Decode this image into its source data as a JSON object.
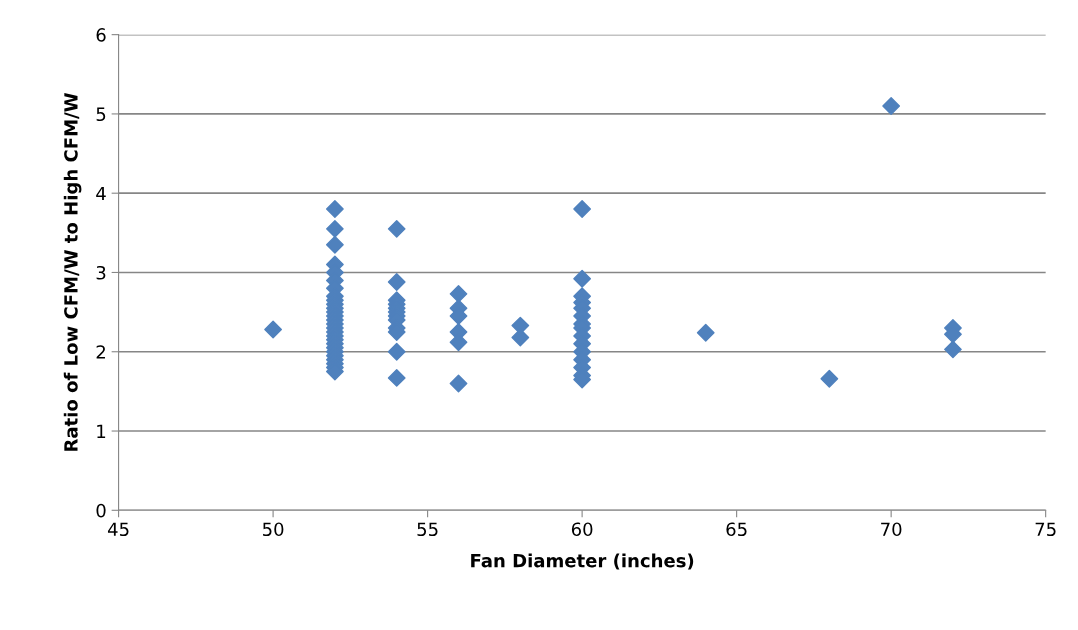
{
  "chart_data": {
    "type": "scatter",
    "xlabel": "Fan Diameter (inches)",
    "ylabel": "Ratio of Low CFM/W to High CFM/W",
    "x": [
      50,
      52,
      52,
      52,
      52,
      52,
      52,
      52,
      52,
      52,
      52,
      52,
      52,
      52,
      52,
      52,
      52,
      52,
      52,
      52,
      52,
      52,
      52,
      52,
      52,
      52,
      52,
      52,
      54,
      54,
      54,
      54,
      54,
      54,
      54,
      54,
      54,
      54,
      54,
      54,
      56,
      56,
      56,
      56,
      56,
      56,
      58,
      58,
      60,
      60,
      60,
      60,
      60,
      60,
      60,
      60,
      60,
      60,
      60,
      60,
      60,
      60,
      60,
      64,
      68,
      70,
      72,
      72,
      72
    ],
    "series": [
      {
        "color": "#4f81bd",
        "values": [
          2.28,
          3.8,
          3.55,
          3.35,
          3.1,
          3.0,
          2.9,
          2.8,
          2.7,
          2.65,
          2.6,
          2.55,
          2.5,
          2.45,
          2.4,
          2.35,
          2.3,
          2.25,
          2.2,
          2.15,
          2.1,
          2.05,
          2.0,
          1.95,
          1.9,
          1.85,
          1.8,
          1.75,
          3.55,
          2.88,
          2.65,
          2.6,
          2.55,
          2.5,
          2.45,
          2.4,
          2.3,
          2.25,
          2.0,
          1.67,
          2.73,
          2.55,
          2.45,
          2.25,
          2.12,
          1.6,
          2.33,
          2.18,
          3.8,
          2.92,
          2.7,
          2.62,
          2.55,
          2.45,
          2.35,
          2.3,
          2.2,
          2.1,
          2.0,
          1.9,
          1.8,
          1.7,
          1.65,
          2.24,
          1.66,
          5.1,
          2.3,
          2.22,
          2.03
        ]
      }
    ],
    "xlim": [
      45,
      75
    ],
    "xticks": [
      45,
      50,
      55,
      60,
      65,
      70,
      75
    ],
    "ylim": [
      0,
      6
    ],
    "yticks": [
      0,
      1,
      2,
      3,
      4,
      5,
      6
    ],
    "grid": "y",
    "marker": "diamond"
  }
}
